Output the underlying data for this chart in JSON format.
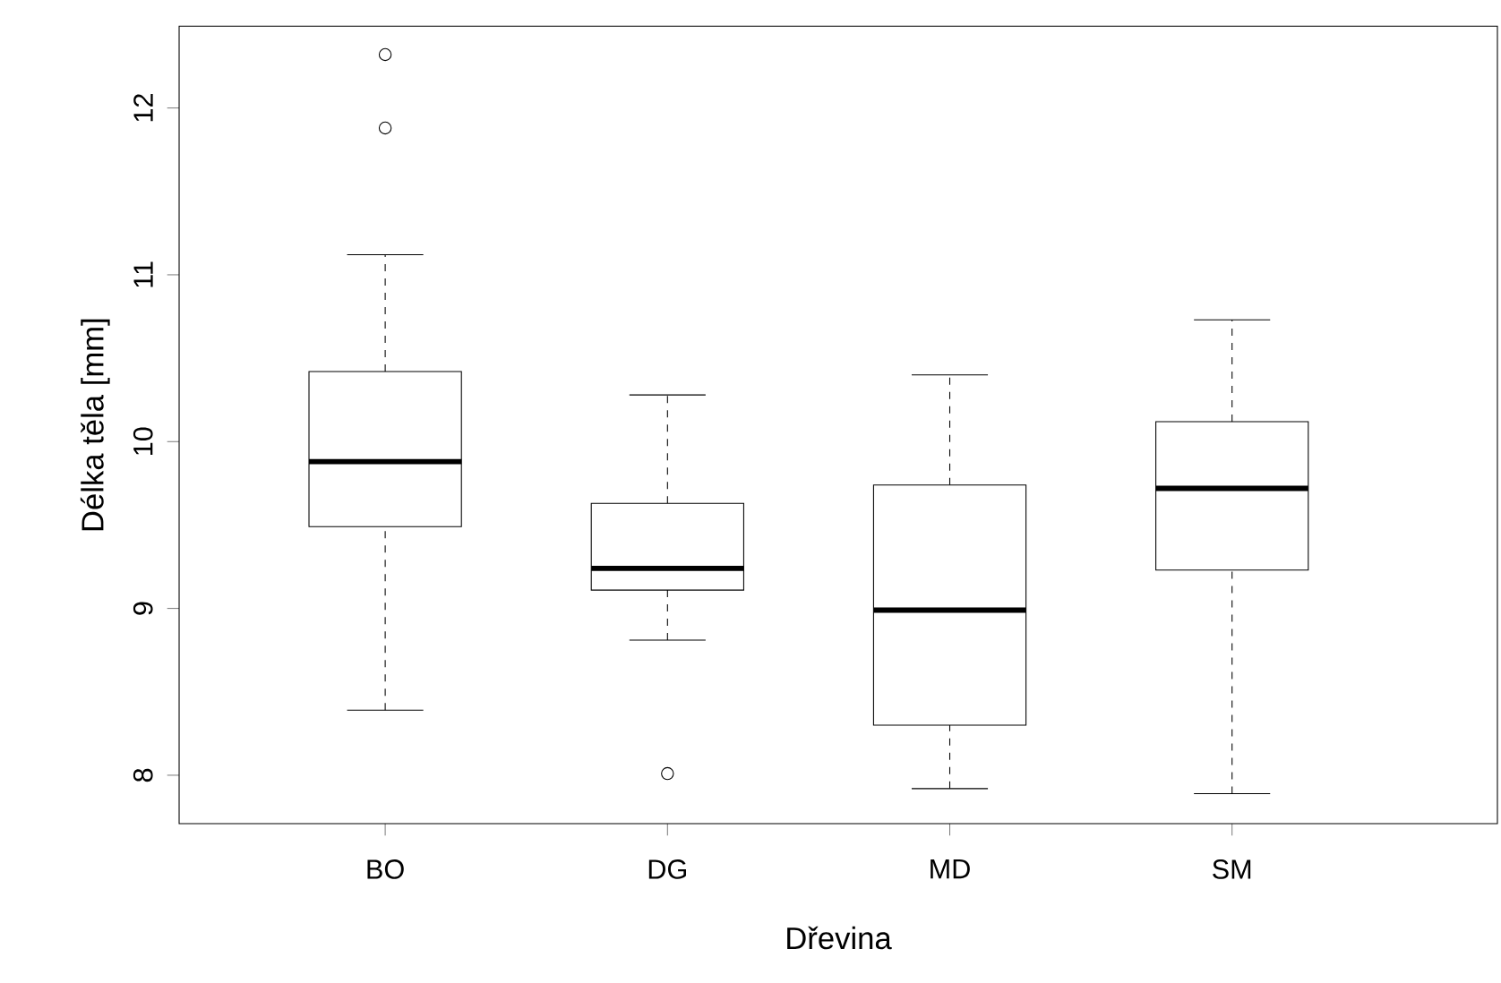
{
  "chart_data": {
    "type": "box",
    "xlabel": "Dřevina",
    "ylabel": "Délka těla [mm]",
    "categories": [
      "BO",
      "DG",
      "MD",
      "SM"
    ],
    "boxes": [
      {
        "low": 8.39,
        "q1": 9.49,
        "median": 9.88,
        "q3": 10.42,
        "high": 11.12,
        "outliers": [
          12.32,
          11.88
        ]
      },
      {
        "low": 8.81,
        "q1": 9.11,
        "median": 9.24,
        "q3": 9.63,
        "high": 10.28,
        "outliers": [
          8.01
        ]
      },
      {
        "low": 7.92,
        "q1": 8.3,
        "median": 8.99,
        "q3": 9.74,
        "high": 10.4
      },
      {
        "low": 7.89,
        "q1": 9.23,
        "median": 9.72,
        "q3": 10.12,
        "high": 10.73
      }
    ],
    "ylim": [
      7.71,
      12.49
    ],
    "yticks": [
      8,
      9,
      10,
      11,
      12
    ],
    "grid": false
  }
}
